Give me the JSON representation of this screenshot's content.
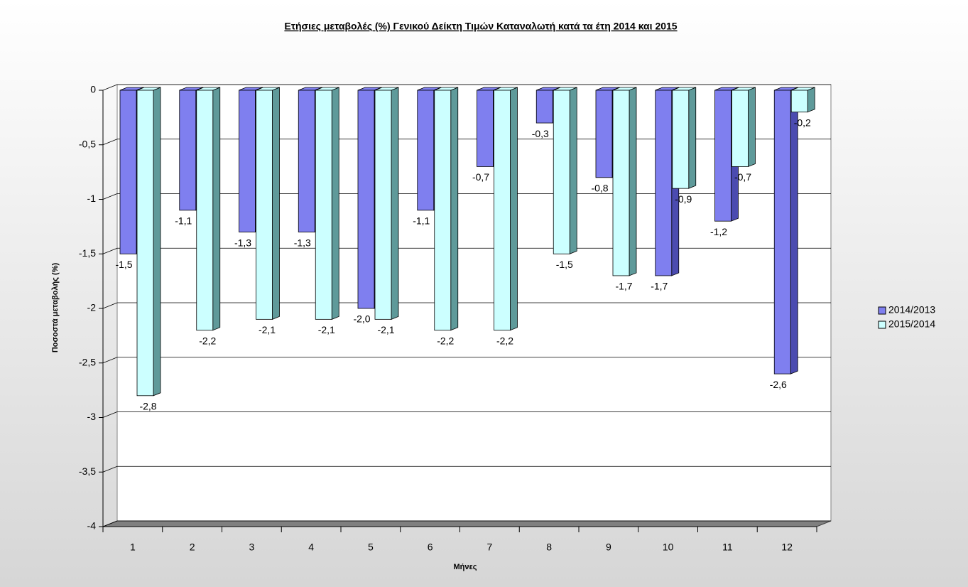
{
  "chart_data": {
    "type": "bar3d",
    "title": "Ετήσιες μεταβολές (%) Γενικού Δείκτη Τιμών Καταναλωτή κατά τα έτη 2014 και 2015",
    "x_label": "Μήνες",
    "y_label": "Ποσοστά μεταβολής (%)",
    "categories": [
      "1",
      "2",
      "3",
      "4",
      "5",
      "6",
      "7",
      "8",
      "9",
      "10",
      "11",
      "12"
    ],
    "series": [
      {
        "name": "2014/2013",
        "color": "#7f7fef",
        "side_color": "#4b4bb0",
        "values": [
          -1.5,
          -1.1,
          -1.3,
          -1.3,
          -2.0,
          -1.1,
          -0.7,
          -0.3,
          -0.8,
          -1.7,
          -1.2,
          -2.6
        ],
        "value_labels": [
          "-1,5",
          "-1,1",
          "-1,3",
          "-1,3",
          "-2,0",
          "-1,1",
          "-0,7",
          "-0,3",
          "-0,8",
          "-1,7",
          "-1,2",
          "-2,6"
        ]
      },
      {
        "name": "2015/2014",
        "color": "#ccffff",
        "side_color": "#5f9a9a",
        "values": [
          -2.8,
          -2.2,
          -2.1,
          -2.1,
          -2.1,
          -2.2,
          -2.2,
          -1.5,
          -1.7,
          -0.9,
          -0.7,
          -0.2
        ],
        "value_labels": [
          "-2,8",
          "-2,2",
          "-2,1",
          "-2,1",
          "-2,1",
          "-2,2",
          "-2,2",
          "-1,5",
          "-1,7",
          "-0,9",
          "-0,7",
          "-0,2"
        ]
      }
    ],
    "ylim": [
      -4,
      0
    ],
    "yticks": [
      0,
      {
        "value": -0.5,
        "label": "-0,5"
      },
      -1,
      {
        "value": -1.5,
        "label": "-1,5"
      },
      -2,
      {
        "value": -2.5,
        "label": "-2,5"
      },
      -3,
      {
        "value": -3.5,
        "label": "-3,5"
      },
      -4
    ],
    "grid": true,
    "legend": "right"
  }
}
